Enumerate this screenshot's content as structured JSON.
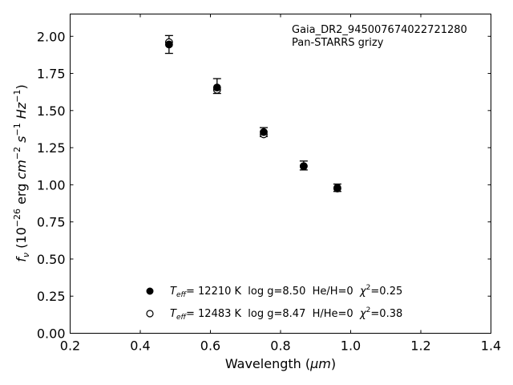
{
  "chart_data": {
    "type": "scatter",
    "annotation": [
      "Gaia_DR2_945007674022721280",
      "Pan-STARRS grizy"
    ],
    "xlabel": {
      "prefix": "Wavelength (",
      "unit": "μm",
      "suffix": ")"
    },
    "ylabel": {
      "base": "f",
      "sub": "ν",
      "open": " (10",
      "exp": "−26",
      "mid": " erg ",
      "cm": "cm",
      "cm_exp": "−2",
      "s": " s",
      "s_exp": "−1",
      "hz": " Hz",
      "hz_exp": "−1",
      "close": ")"
    },
    "xlim": [
      0.2,
      1.4
    ],
    "ylim": [
      0.0,
      2.15
    ],
    "x_ticks": [
      "0.2",
      "0.4",
      "0.6",
      "0.8",
      "1.0",
      "1.2",
      "1.4"
    ],
    "y_ticks": [
      "0.00",
      "0.25",
      "0.50",
      "0.75",
      "1.00",
      "1.25",
      "1.50",
      "1.75",
      "2.00"
    ],
    "grid": false,
    "observed": {
      "x": [
        0.482,
        0.619,
        0.752,
        0.866,
        0.962
      ],
      "y": [
        1.945,
        1.665,
        1.355,
        1.13,
        0.98
      ],
      "err": [
        0.06,
        0.05,
        0.03,
        0.03,
        0.025
      ]
    },
    "series": [
      {
        "marker": "filled",
        "x": [
          0.482,
          0.619,
          0.752,
          0.866,
          0.962
        ],
        "y": [
          1.945,
          1.655,
          1.355,
          1.125,
          0.975
        ],
        "label": {
          "t": "T",
          "sub": "eff",
          "text": "= 12210 K  log g=8.50  He/H=0  ",
          "chi": "χ",
          "chi_exp": "2",
          "chi_val": "=0.25"
        }
      },
      {
        "marker": "open",
        "x": [
          0.482,
          0.619,
          0.752,
          0.866,
          0.962
        ],
        "y": [
          1.96,
          1.64,
          1.34,
          1.125,
          0.98
        ],
        "label": {
          "t": "T",
          "sub": "eff",
          "text": "= 12483 K  log g=8.47  H/He=0  ",
          "chi": "χ",
          "chi_exp": "2",
          "chi_val": "=0.38"
        }
      }
    ],
    "legend_position": "bottom-center",
    "colors": {
      "axes": "#000000",
      "marker": "#000000",
      "background": "#ffffff"
    }
  }
}
